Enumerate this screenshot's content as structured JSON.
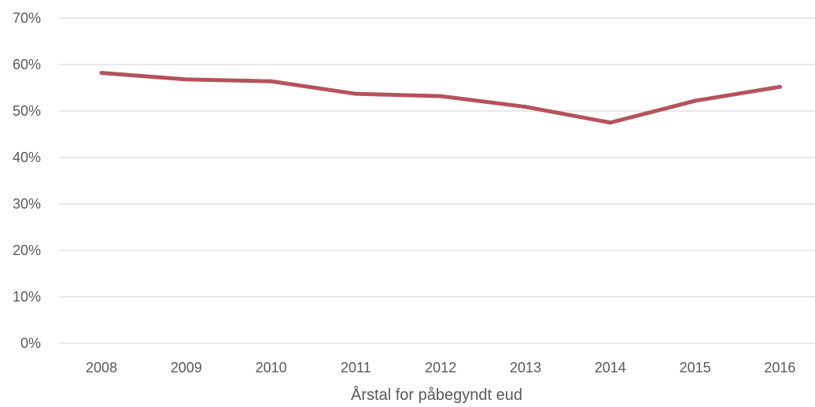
{
  "chart_data": {
    "type": "line",
    "title": "",
    "xlabel": "Årstal for påbegyndt eud",
    "ylabel": "",
    "categories": [
      "2008",
      "2009",
      "2010",
      "2011",
      "2012",
      "2013",
      "2014",
      "2015",
      "2016"
    ],
    "series": [
      {
        "values": [
          0.582,
          0.568,
          0.564,
          0.537,
          0.532,
          0.509,
          0.475,
          0.522,
          0.552
        ]
      }
    ],
    "ylim": [
      0,
      0.7
    ],
    "yticks": [
      "0%",
      "10%",
      "20%",
      "30%",
      "40%",
      "50%",
      "60%",
      "70%"
    ],
    "grid": true,
    "legend": "none",
    "colors": {
      "line": "#b5525c",
      "grid": "#d9d9d9",
      "text": "#595959"
    }
  }
}
